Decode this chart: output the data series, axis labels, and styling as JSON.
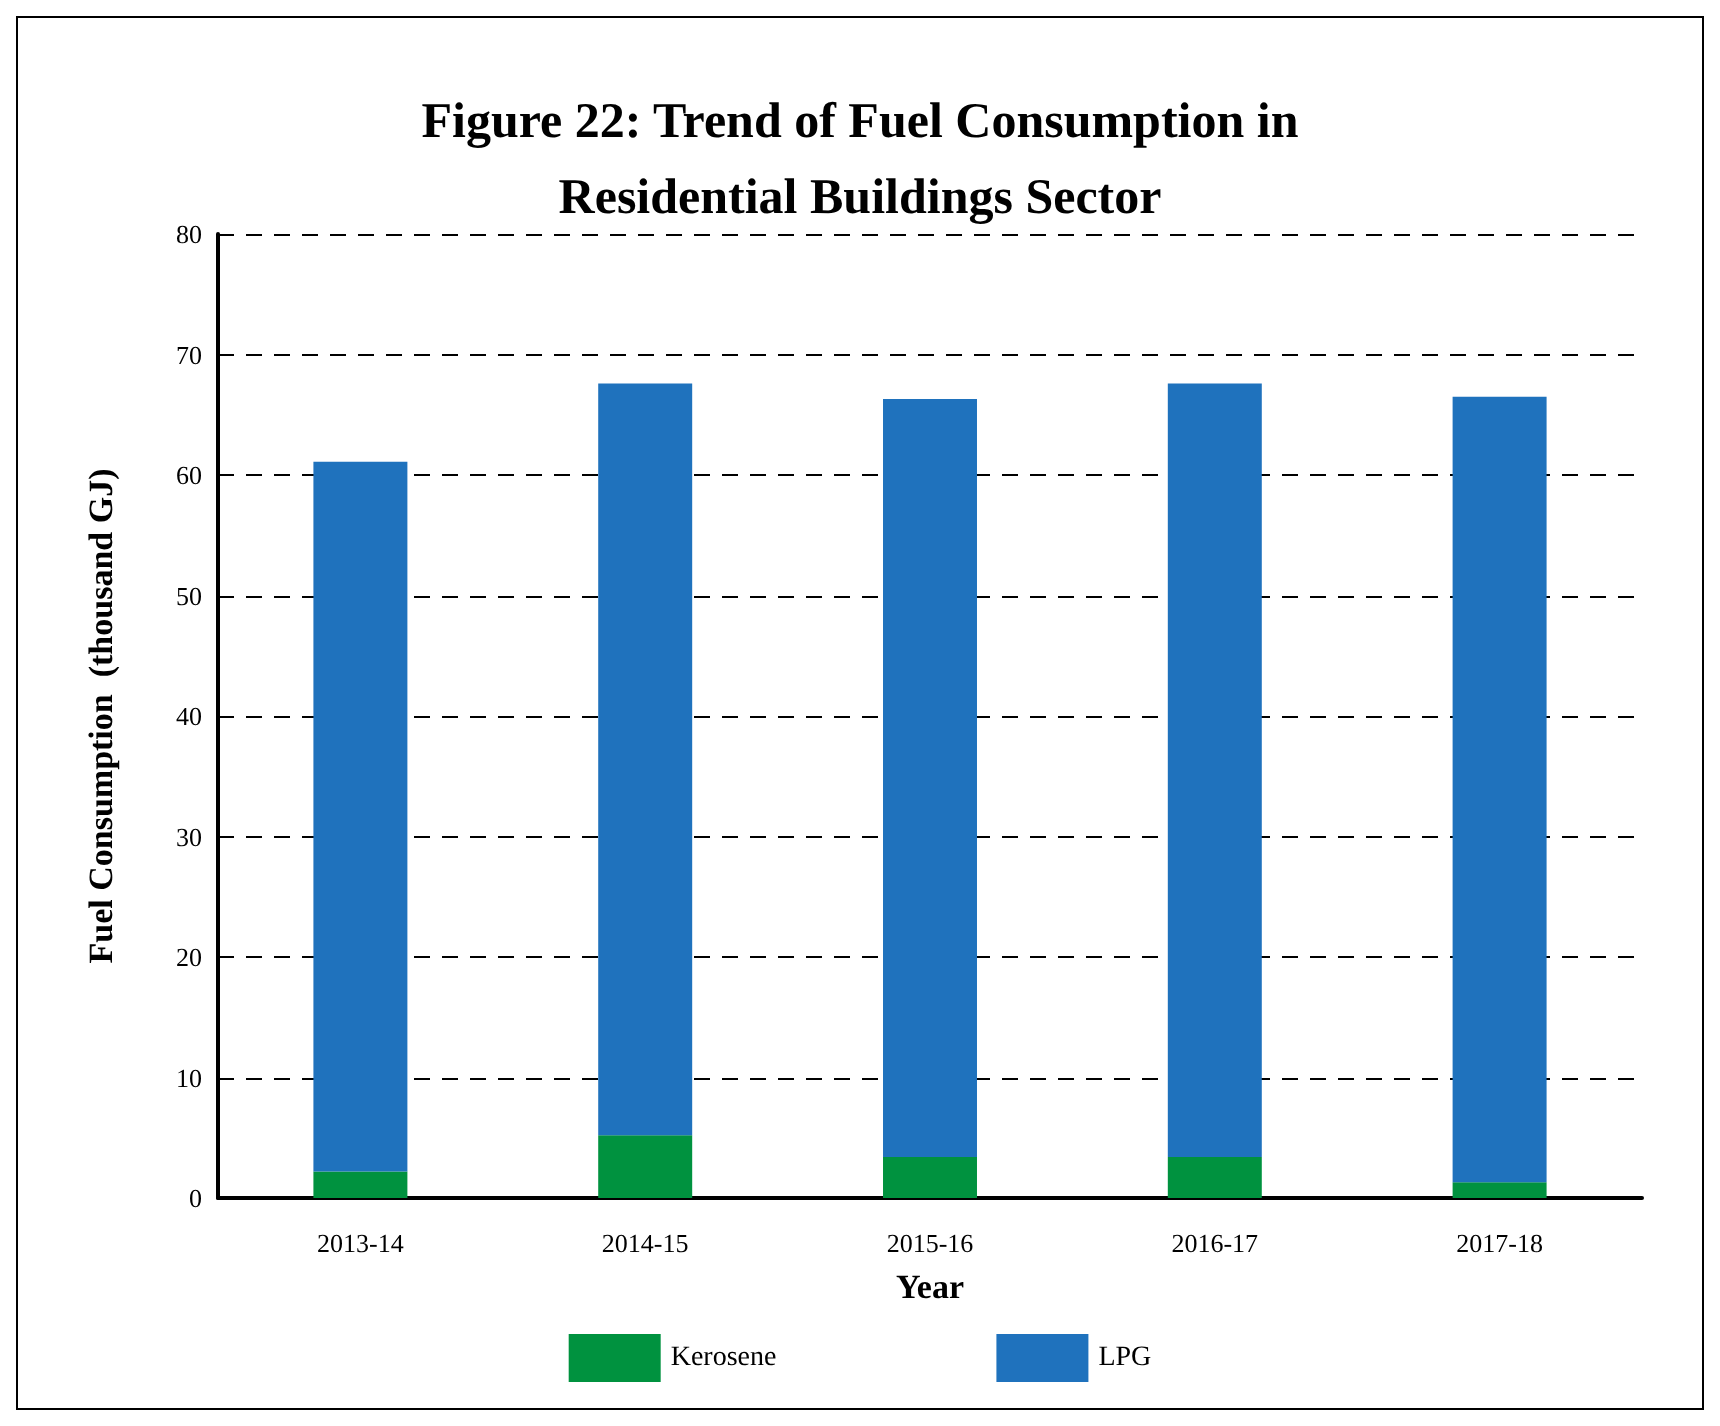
{
  "chart_data": {
    "type": "bar",
    "title": "Figure 22: Trend of Fuel Consumption in\nResidential Buildings Sector",
    "xlabel": "Year",
    "ylabel": "Fuel Consumption  (thousand GJ)",
    "categories": [
      "2013-14",
      "2014-15",
      "2015-16",
      "2016-17",
      "2017-18"
    ],
    "series": [
      {
        "name": "Kerosene",
        "color": "#00923f",
        "values": [
          2.2,
          5.2,
          3.4,
          3.4,
          1.3
        ]
      },
      {
        "name": "LPG",
        "color": "#1f72bd",
        "values": [
          58.9,
          62.4,
          62.9,
          64.2,
          65.2
        ]
      }
    ],
    "stacked": true,
    "ylim": [
      0,
      80
    ],
    "yticks": [
      0,
      10,
      20,
      30,
      40,
      50,
      60,
      70,
      80
    ],
    "grid": "y",
    "legend": "bottom"
  }
}
